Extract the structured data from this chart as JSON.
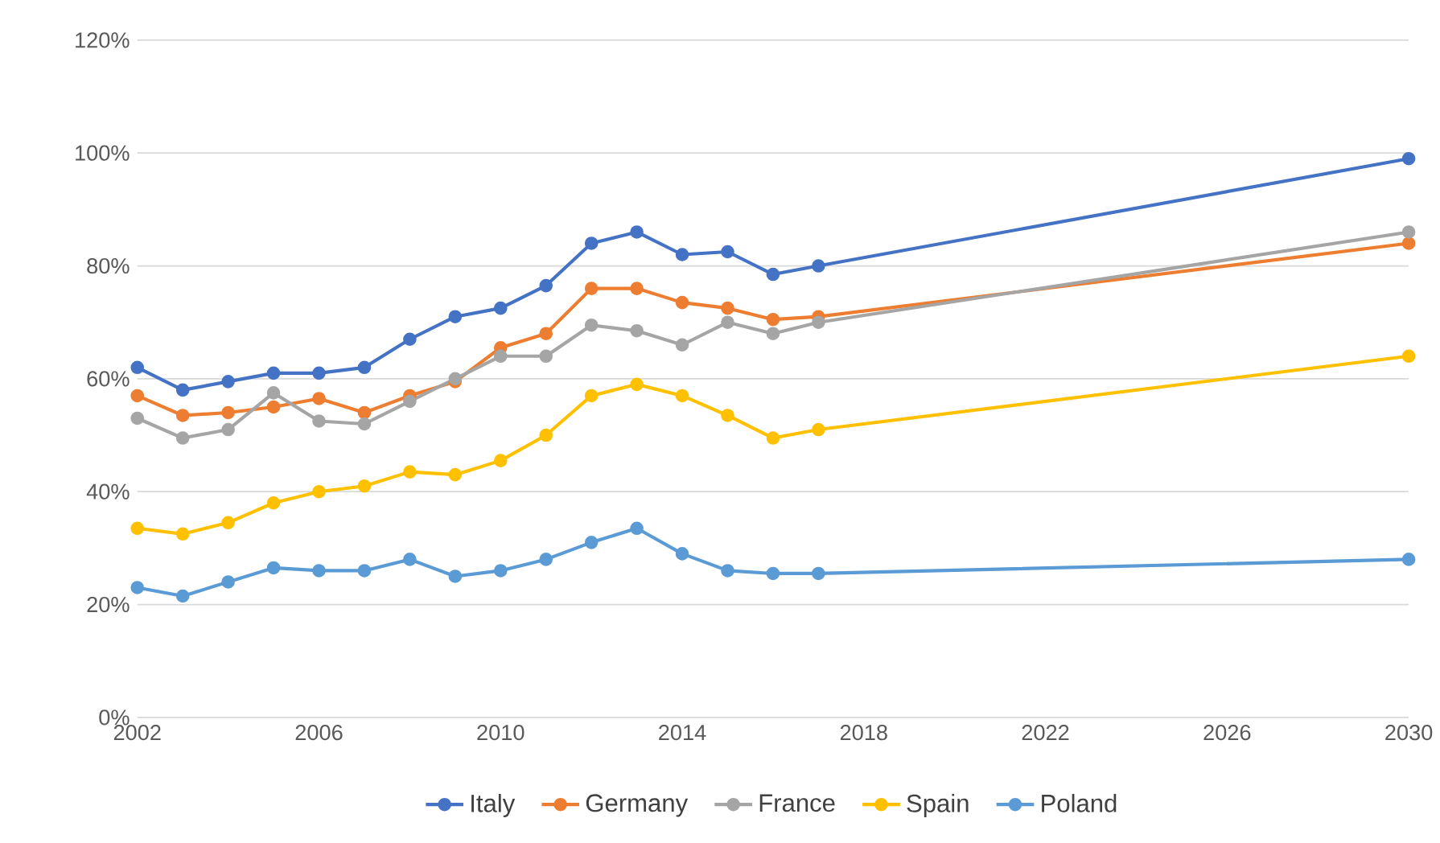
{
  "chart_data": {
    "type": "line",
    "x": [
      2002,
      2003,
      2004,
      2005,
      2006,
      2007,
      2008,
      2009,
      2010,
      2011,
      2012,
      2013,
      2014,
      2015,
      2016,
      2017,
      2030
    ],
    "series": [
      {
        "name": "Italy",
        "color": "#4472c4",
        "values": [
          62,
          58,
          59.5,
          61,
          61,
          62,
          67,
          71,
          72.5,
          76.5,
          84,
          86,
          82,
          82.5,
          78.5,
          80,
          99
        ]
      },
      {
        "name": "Germany",
        "color": "#ed7d31",
        "values": [
          57,
          53.5,
          54,
          55,
          56.5,
          54,
          57,
          59.5,
          65.5,
          68,
          76,
          76,
          73.5,
          72.5,
          70.5,
          71,
          84
        ]
      },
      {
        "name": "France",
        "color": "#a5a5a5",
        "values": [
          53,
          49.5,
          51,
          57.5,
          52.5,
          52,
          56,
          60,
          64,
          64,
          69.5,
          68.5,
          66,
          70,
          68,
          70,
          86
        ]
      },
      {
        "name": "Spain",
        "color": "#ffc000",
        "values": [
          33.5,
          32.5,
          34.5,
          38,
          40,
          41,
          43.5,
          43,
          45.5,
          50,
          57,
          59,
          57,
          53.5,
          49.5,
          51,
          64
        ]
      },
      {
        "name": "Poland",
        "color": "#5b9bd5",
        "values": [
          23,
          21.5,
          24,
          26.5,
          26,
          26,
          28,
          25,
          26,
          28,
          31,
          33.5,
          29,
          26,
          25.5,
          25.5,
          28
        ]
      }
    ],
    "xlim": [
      2002,
      2030
    ],
    "xticks": [
      2002,
      2006,
      2010,
      2014,
      2018,
      2022,
      2026,
      2030
    ],
    "ylim": [
      0,
      120
    ],
    "yticks": [
      {
        "value": 0,
        "label": "0%"
      },
      {
        "value": 20,
        "label": "20%"
      },
      {
        "value": 40,
        "label": "40%"
      },
      {
        "value": 60,
        "label": "60%"
      },
      {
        "value": 80,
        "label": "80%"
      },
      {
        "value": 100,
        "label": "100%"
      },
      {
        "value": 120,
        "label": "120%"
      }
    ],
    "grid": "y",
    "legend": "bottom",
    "marker": "circle",
    "line_style": "solid"
  }
}
